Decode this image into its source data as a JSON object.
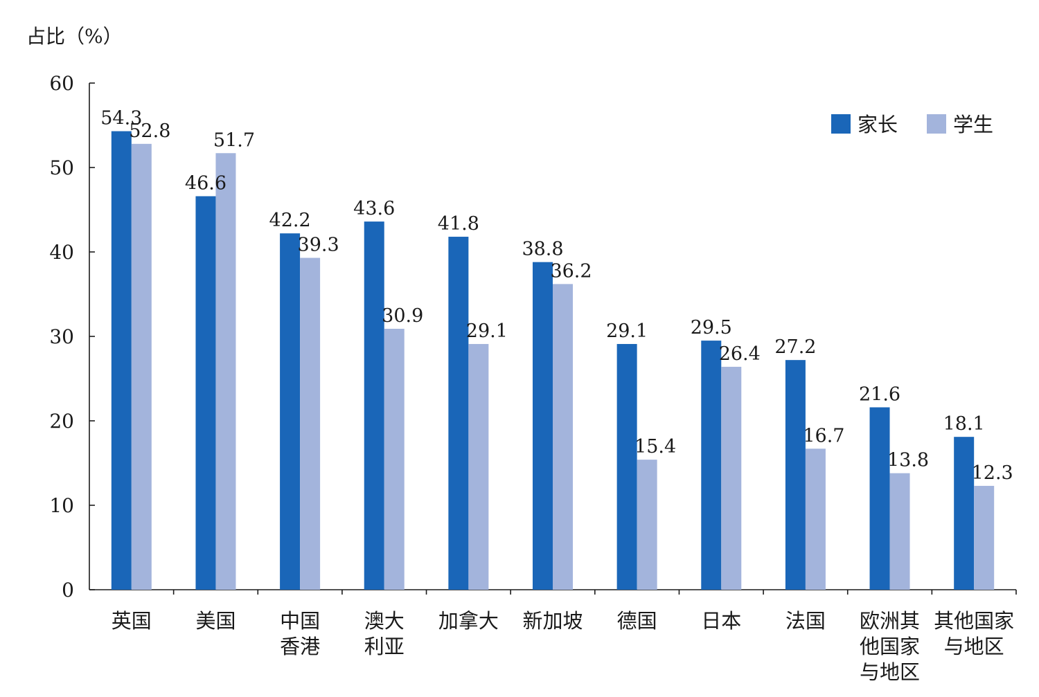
{
  "chart_data": {
    "type": "bar",
    "ylabel": "占比（%）",
    "ylim": [
      0,
      60
    ],
    "yticks": [
      0,
      10,
      20,
      30,
      40,
      50,
      60
    ],
    "categories": [
      [
        "英国"
      ],
      [
        "美国"
      ],
      [
        "中国",
        "香港"
      ],
      [
        "澳大",
        "利亚"
      ],
      [
        "加拿大"
      ],
      [
        "新加坡"
      ],
      [
        "德国"
      ],
      [
        "日本"
      ],
      [
        "法国"
      ],
      [
        "欧洲其",
        "他国家",
        "与地区"
      ],
      [
        "其他国家",
        "与地区"
      ]
    ],
    "series": [
      {
        "name": "家长",
        "color": "#1a66b8",
        "values": [
          54.3,
          46.6,
          42.2,
          43.6,
          41.8,
          38.8,
          29.1,
          29.5,
          27.2,
          21.6,
          18.1
        ]
      },
      {
        "name": "学生",
        "color": "#a3b4dc",
        "values": [
          52.8,
          51.7,
          39.3,
          30.9,
          29.1,
          36.2,
          15.4,
          26.4,
          16.7,
          13.8,
          12.3
        ]
      }
    ],
    "legend_position": "top-right",
    "grid": false
  }
}
